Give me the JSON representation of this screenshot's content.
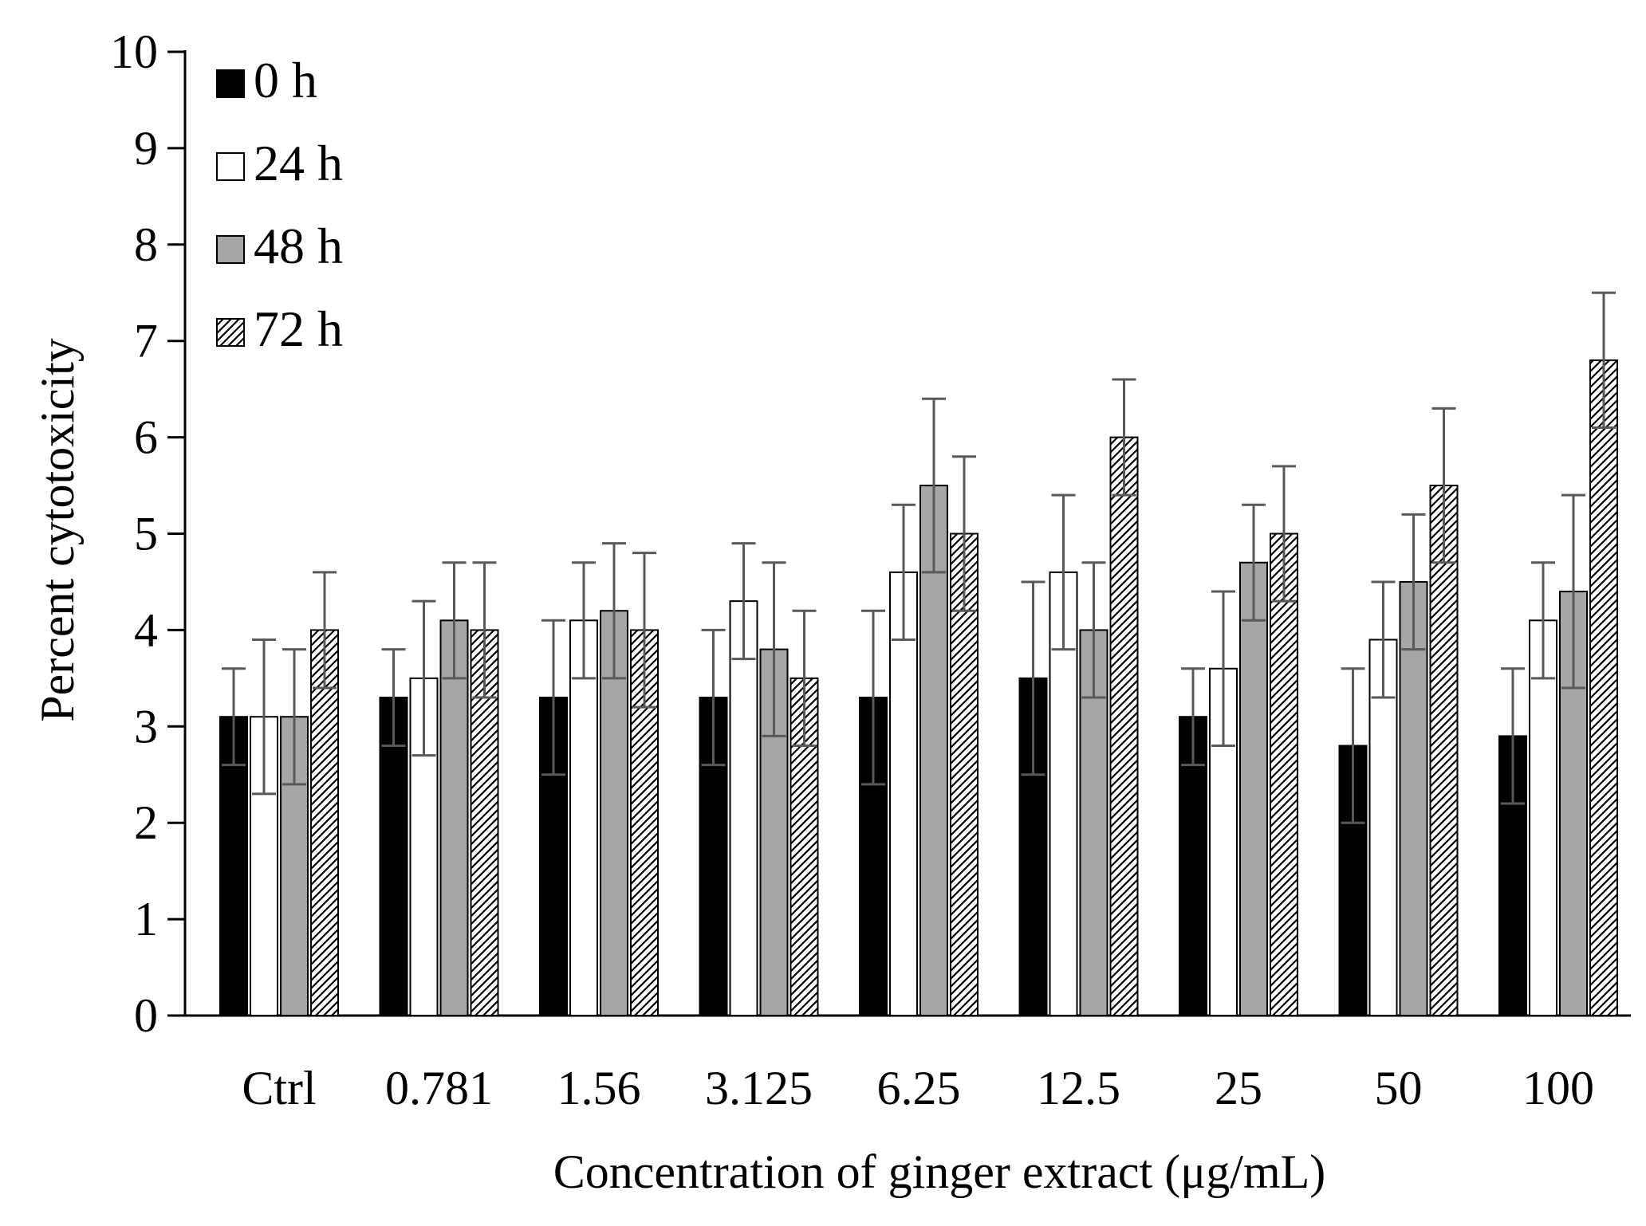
{
  "chart_data": {
    "type": "bar",
    "title": "",
    "xlabel": "Concentration of ginger extract (μg/mL)",
    "ylabel": "Percent cytotoxicity",
    "ylim": [
      0,
      10
    ],
    "yticks": [
      "0",
      "1",
      "2",
      "3",
      "4",
      "5",
      "6",
      "7",
      "8",
      "9",
      "10"
    ],
    "grid": false,
    "legend_position": "top-left",
    "categories": [
      "Ctrl",
      "0.781",
      "1.56",
      "3.125",
      "6.25",
      "12.5",
      "25",
      "50",
      "100"
    ],
    "series": [
      {
        "name": "0 h",
        "style": "solid",
        "fill": "#000000",
        "values": [
          3.1,
          3.3,
          3.3,
          3.3,
          3.3,
          3.5,
          3.1,
          2.8,
          2.9
        ],
        "errors": [
          0.5,
          0.5,
          0.8,
          0.7,
          0.9,
          1.0,
          0.5,
          0.8,
          0.7
        ]
      },
      {
        "name": "24 h",
        "style": "solid",
        "fill": "#ffffff",
        "values": [
          3.1,
          3.5,
          4.1,
          4.3,
          4.6,
          4.6,
          3.6,
          3.9,
          4.1
        ],
        "errors": [
          0.8,
          0.8,
          0.6,
          0.6,
          0.7,
          0.8,
          0.8,
          0.6,
          0.6
        ]
      },
      {
        "name": "48 h",
        "style": "solid",
        "fill": "#a6a6a6",
        "values": [
          3.1,
          4.1,
          4.2,
          3.8,
          5.5,
          4.0,
          4.7,
          4.5,
          4.4
        ],
        "errors": [
          0.7,
          0.6,
          0.7,
          0.9,
          0.9,
          0.7,
          0.6,
          0.7,
          1.0
        ]
      },
      {
        "name": "72 h",
        "style": "hatched",
        "fill": "#ffffff",
        "values": [
          4.0,
          4.0,
          4.0,
          3.5,
          5.0,
          6.0,
          5.0,
          5.5,
          6.8
        ],
        "errors": [
          0.6,
          0.7,
          0.8,
          0.7,
          0.8,
          0.6,
          0.7,
          0.8,
          0.7
        ]
      }
    ],
    "error_bar_color": "#595959"
  }
}
